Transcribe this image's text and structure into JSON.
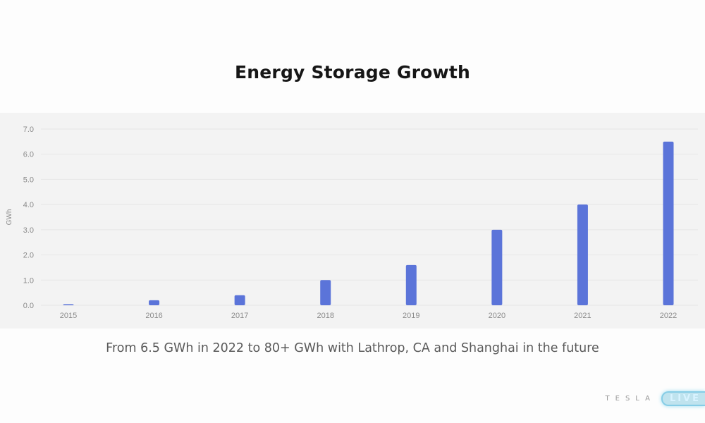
{
  "title": "Energy Storage Growth",
  "caption": "From 6.5 GWh in 2022 to 80+ GWh with Lathrop, CA and Shanghai in the future",
  "footer": {
    "brand": "TESLA",
    "badge": "LIVE"
  },
  "colors": {
    "bar": "#5b74d9",
    "grid": "#e6e6e6",
    "panel": "#f3f3f3"
  },
  "chart_data": {
    "type": "bar",
    "categories": [
      "2015",
      "2016",
      "2017",
      "2018",
      "2019",
      "2020",
      "2021",
      "2022"
    ],
    "values": [
      0.0,
      0.2,
      0.4,
      1.0,
      1.6,
      3.0,
      4.0,
      6.5
    ],
    "ylabel": "GWh",
    "ylim": [
      0,
      7
    ],
    "yticks": [
      "0.0",
      "1.0",
      "2.0",
      "3.0",
      "4.0",
      "5.0",
      "6.0",
      "7.0"
    ],
    "grid": true
  }
}
